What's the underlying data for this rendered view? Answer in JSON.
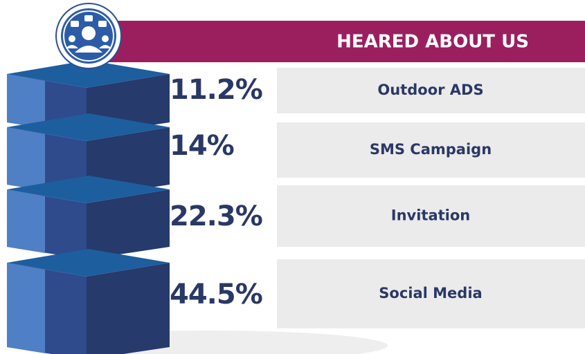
{
  "header": {
    "title": "HEARED ABOUT US"
  },
  "items": [
    {
      "percent": "11.2%",
      "label": "Outdoor ADS"
    },
    {
      "percent": "14%",
      "label": "SMS Campaign"
    },
    {
      "percent": "22.3%",
      "label": "Invitation"
    },
    {
      "percent": "44.5%",
      "label": "Social Media"
    }
  ]
}
